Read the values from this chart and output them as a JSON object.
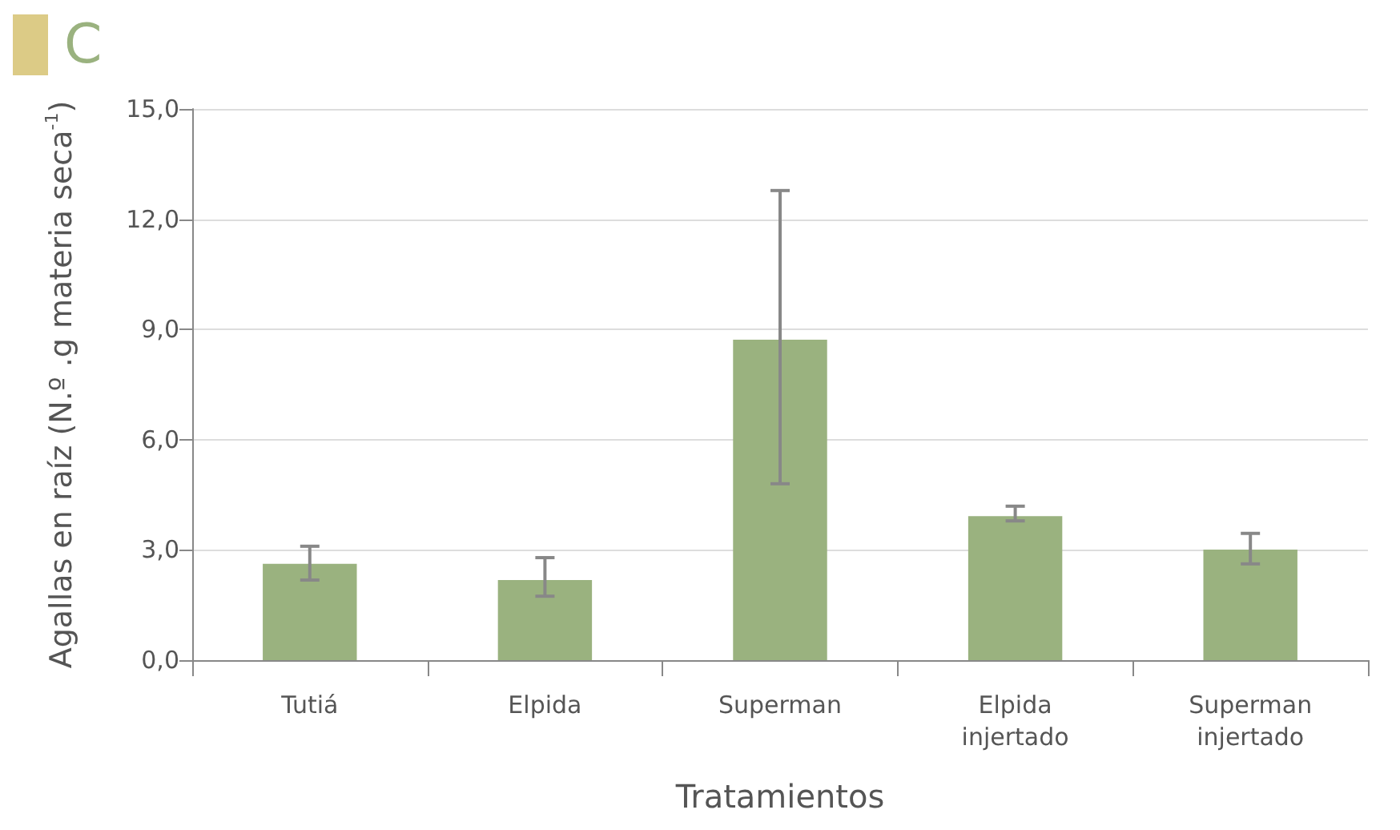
{
  "chart_data": {
    "type": "bar",
    "title": "C",
    "xlabel": "Tratamientos",
    "ylabel": "Agallas en raíz (N.º .g materia seca$^{-1}$)",
    "categories": [
      "Tutiá",
      "Elpida",
      "Superman",
      "Elpida\ninjertado",
      "Superman\ninjertado"
    ],
    "series": [
      {
        "color": "#9ab27f",
        "values": [
          2.62,
          2.18,
          8.72,
          3.92,
          3.01
        ],
        "errors": [
          [
            2.18,
            3.1
          ],
          [
            1.74,
            2.79
          ],
          [
            4.8,
            12.78
          ],
          [
            3.79,
            4.19
          ],
          [
            2.62,
            3.45
          ]
        ]
      }
    ],
    "ylim": [
      0,
      15
    ],
    "yticks": [
      {
        "value": 0,
        "label": "0,0"
      },
      {
        "value": 3,
        "label": "3,0"
      },
      {
        "value": 6,
        "label": "6,0"
      },
      {
        "value": 9,
        "label": "9,0"
      },
      {
        "value": 12,
        "label": "12,0"
      },
      {
        "value": 15,
        "label": "15,0"
      }
    ],
    "grid": "y"
  }
}
